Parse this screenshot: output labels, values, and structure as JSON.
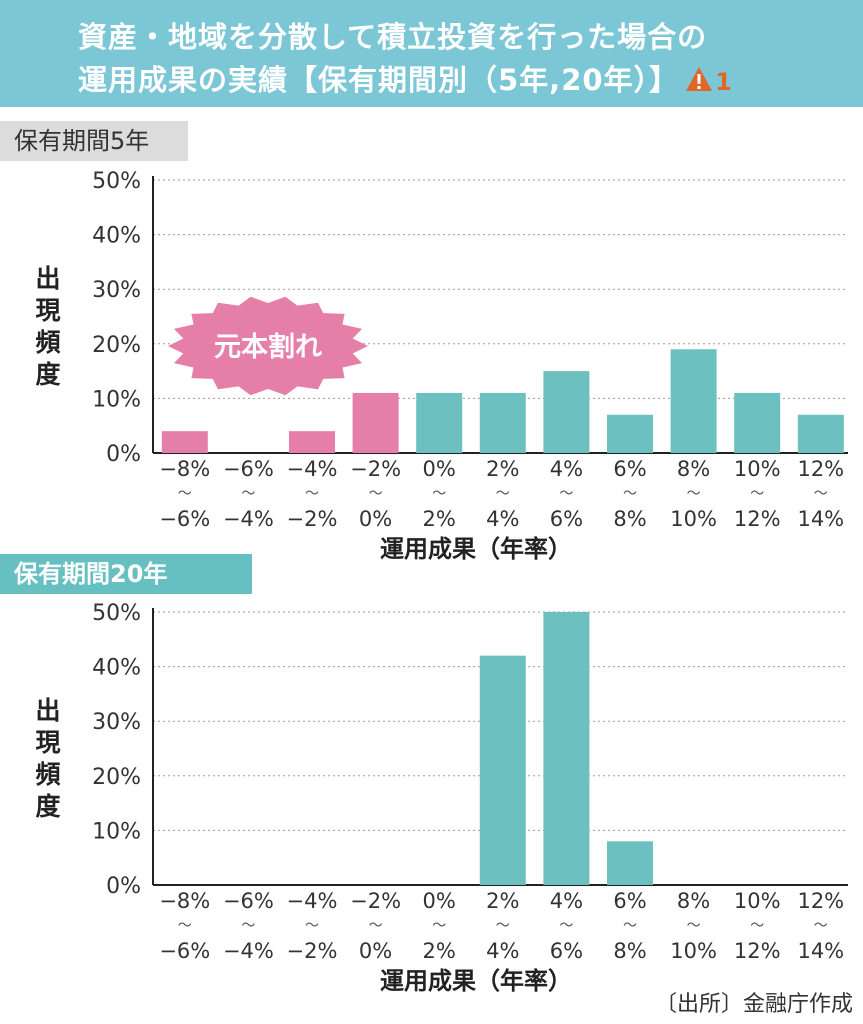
{
  "header": {
    "line1": "資産・地域を分散して積立投資を行った場合の",
    "line2": "運用成果の実績【保有期間別（5年,20年）】",
    "warning_icon": "warning-triangle-icon",
    "warning_number": "1"
  },
  "colors": {
    "header_bg": "#7cc7d6",
    "loss_bar": "#e57fa8",
    "gain_bar": "#6cc0bf",
    "burst": "#e57fa8",
    "section_teal": "#66bfc0",
    "section_gray": "#dcdcdc"
  },
  "section1": {
    "label": "保有期間5年"
  },
  "section2": {
    "label": "保有期間20年"
  },
  "source": "〔出所〕金融庁作成",
  "chart_data": [
    {
      "type": "bar",
      "label_top": [
        "−8%",
        "−6%",
        "−4%",
        "−2%",
        "0%",
        "2%",
        "4%",
        "6%",
        "8%",
        "10%",
        "12%"
      ],
      "label_bottom": [
        "−6%",
        "−4%",
        "−2%",
        "0%",
        "2%",
        "4%",
        "6%",
        "8%",
        "10%",
        "12%",
        "14%"
      ],
      "tilde": "〜",
      "values": [
        4,
        0,
        4,
        11,
        11,
        11,
        15,
        7,
        19,
        11,
        7
      ],
      "loss_count": 4,
      "yticks": [
        "0%",
        "10%",
        "20%",
        "30%",
        "40%",
        "50%"
      ],
      "ylim": [
        0,
        50
      ],
      "ylabel": "出現頻度",
      "xlabel": "運用成果（年率）",
      "annotation": "元本割れ",
      "grid": true
    },
    {
      "type": "bar",
      "label_top": [
        "−8%",
        "−6%",
        "−4%",
        "−2%",
        "0%",
        "2%",
        "4%",
        "6%",
        "8%",
        "10%",
        "12%"
      ],
      "label_bottom": [
        "−6%",
        "−4%",
        "−2%",
        "0%",
        "2%",
        "4%",
        "6%",
        "8%",
        "10%",
        "12%",
        "14%"
      ],
      "tilde": "〜",
      "values": [
        0,
        0,
        0,
        0,
        0,
        42,
        50,
        8,
        0,
        0,
        0
      ],
      "loss_count": 4,
      "yticks": [
        "0%",
        "10%",
        "20%",
        "30%",
        "40%",
        "50%"
      ],
      "ylim": [
        0,
        50
      ],
      "ylabel": "出現頻度",
      "xlabel": "運用成果（年率）",
      "grid": true
    }
  ]
}
